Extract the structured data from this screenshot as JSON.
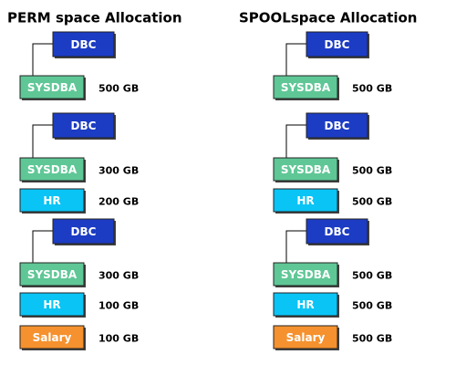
{
  "columns": [
    {
      "title": "PERM space Allocation",
      "groups": [
        {
          "nodes": [
            {
              "label": "DBC"
            },
            {
              "label": "SYSDBA",
              "size": "500 GB"
            }
          ]
        },
        {
          "nodes": [
            {
              "label": "DBC"
            },
            {
              "label": "SYSDBA",
              "size": "300 GB"
            },
            {
              "label": "HR",
              "size": "200 GB"
            }
          ]
        },
        {
          "nodes": [
            {
              "label": "DBC"
            },
            {
              "label": "SYSDBA",
              "size": "300 GB"
            },
            {
              "label": "HR",
              "size": "100 GB"
            },
            {
              "label": "Salary",
              "size": "100 GB"
            }
          ]
        }
      ]
    },
    {
      "title": "SPOOLspace Allocation",
      "groups": [
        {
          "nodes": [
            {
              "label": "DBC"
            },
            {
              "label": "SYSDBA",
              "size": "500 GB"
            }
          ]
        },
        {
          "nodes": [
            {
              "label": "DBC"
            },
            {
              "label": "SYSDBA",
              "size": "500 GB"
            },
            {
              "label": "HR",
              "size": "500 GB"
            }
          ]
        },
        {
          "nodes": [
            {
              "label": "DBC"
            },
            {
              "label": "SYSDBA",
              "size": "500 GB"
            },
            {
              "label": "HR",
              "size": "500 GB"
            },
            {
              "label": "Salary",
              "size": "500 GB"
            }
          ]
        }
      ]
    }
  ]
}
